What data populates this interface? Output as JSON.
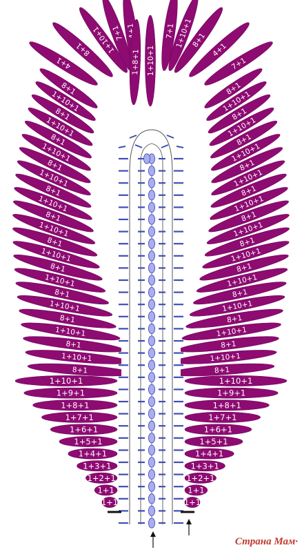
{
  "colors": {
    "petal": "#8e0b72",
    "petal_dark": "#6d0558",
    "bead": "#a9aef0",
    "bead_stroke": "#4a4fb0",
    "stitch": "#3e4db3",
    "line": "#555555",
    "marker": "#111111",
    "label": "#ffffff"
  },
  "leaf": {
    "side_left_upper": [
      "8+1",
      "1+10+1",
      "8+1",
      "1+10+1",
      "8+1",
      "1+10+1",
      "8+1",
      "1+10+1",
      "8+1",
      "1+10+1",
      "8+1",
      "1+10+1",
      "8+1",
      "1+10+1",
      "8+1",
      "1+10+1",
      "8+1",
      "1+10+1",
      "8+1",
      "1+10+1",
      "8+1",
      "1+10+1",
      "8+1"
    ],
    "side_right_upper": [
      "8+1",
      "1+10+1",
      "8+1",
      "1+10+1",
      "8+1",
      "1+10+1",
      "8+1",
      "1+10+1",
      "8+1",
      "1+10+1",
      "8+1",
      "1+10+1",
      "8+1",
      "1+10+1",
      "8+1",
      "1+10+1",
      "8+1",
      "1+10+1",
      "8+1",
      "1+10+1",
      "8+1",
      "1+10+1",
      "8+1"
    ],
    "top_fan_left": [
      "4+1",
      "8+1",
      "1+10+1",
      "7+1",
      "4+1"
    ],
    "top_fan_right": [
      "7+1",
      "1+10+1",
      "8+1",
      "4+1",
      "7+1"
    ],
    "top_center": [
      "1+8+1",
      "1+10+1"
    ],
    "bottom_rows": [
      "1+10+1",
      "1+9+1",
      "1+8+1",
      "1+7+1",
      "1+6+1",
      "1+5+1",
      "1+4+1",
      "1+3+1",
      "1+2+1",
      "1+1",
      "1+1"
    ],
    "center_beads": 31
  },
  "watermark": {
    "text": "Страна Мам",
    "dot": "·"
  }
}
